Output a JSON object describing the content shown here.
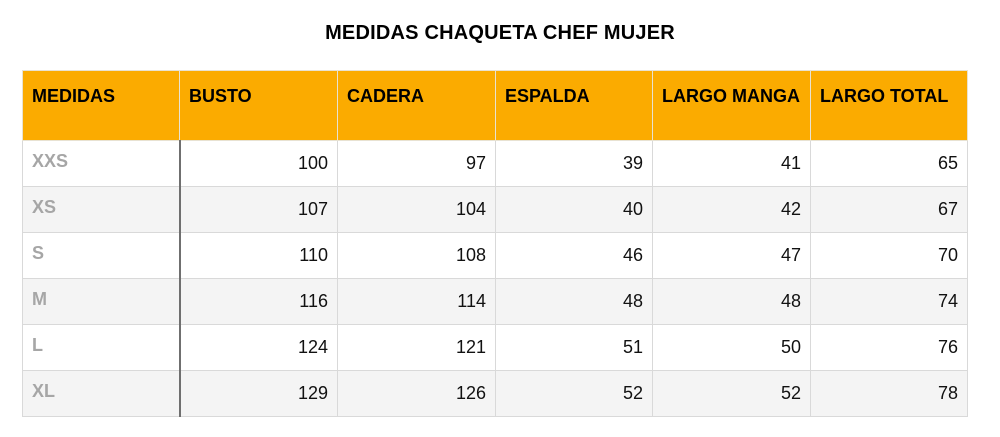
{
  "title": "MEDIDAS CHAQUETA CHEF MUJER",
  "headers": [
    "MEDIDAS",
    "BUSTO",
    "CADERA",
    "ESPALDA",
    "LARGO MANGA",
    "LARGO TOTAL"
  ],
  "rows": [
    {
      "size": "XXS",
      "values": [
        "100",
        "97",
        "39",
        "41",
        "65"
      ]
    },
    {
      "size": "XS",
      "values": [
        "107",
        "104",
        "40",
        "42",
        "67"
      ]
    },
    {
      "size": "S",
      "values": [
        "110",
        "108",
        "46",
        "47",
        "70"
      ]
    },
    {
      "size": "M",
      "values": [
        "116",
        "114",
        "48",
        "48",
        "74"
      ]
    },
    {
      "size": "L",
      "values": [
        "124",
        "121",
        "51",
        "50",
        "76"
      ]
    },
    {
      "size": "XL",
      "values": [
        "129",
        "126",
        "52",
        "52",
        "78"
      ]
    }
  ],
  "colors": {
    "header_background": "#fbab00",
    "size_label": "#a6a6a6",
    "alt_row": "#f4f4f4"
  }
}
